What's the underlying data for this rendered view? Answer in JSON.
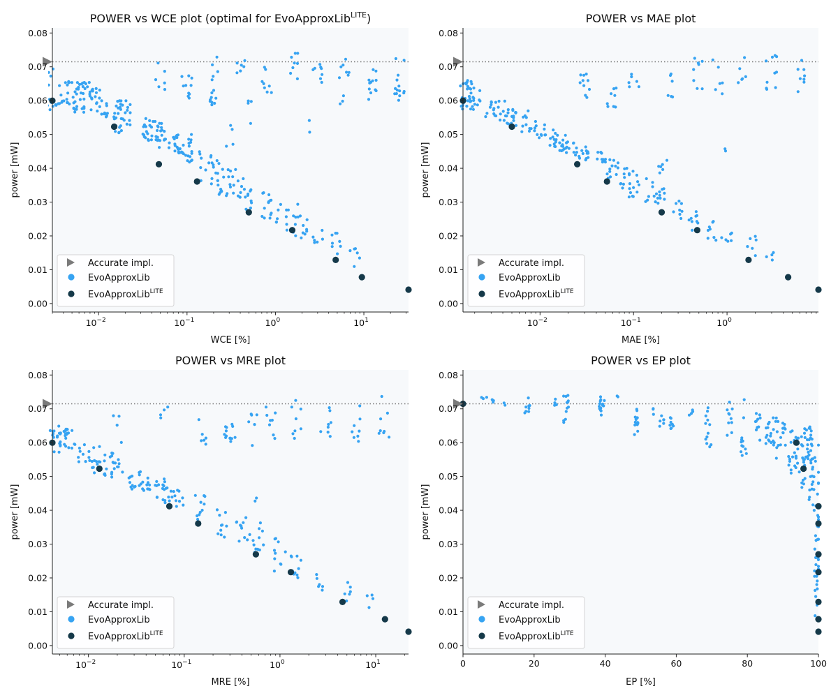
{
  "colors": {
    "evo": "#36a3f2",
    "lite": "#153949",
    "accurate": "#7a7a7a",
    "panel_bg": "#f7f9fb",
    "refline": "#777777"
  },
  "legend": {
    "accurate": "Accurate impl.",
    "evo": "EvoApproxLib",
    "lite": "EvoApproxLib",
    "lite_sup": "LITE"
  },
  "ylabel": "power [mW]",
  "chart_data": [
    {
      "type": "scatter",
      "title": "POWER vs WCE plot (optimal for EvoApproxLib",
      "title_sup": "LITE",
      "title_end": ")",
      "xlabel": "WCE [%]",
      "ylabel": "power [mW]",
      "xscale": "log",
      "xlim": [
        0.003,
        32
      ],
      "ylim": [
        -0.0025,
        0.0815
      ],
      "xticks": [
        "10",
        "10",
        "10",
        "10"
      ],
      "xtick_exps": [
        "−2",
        "−1",
        "0",
        "1"
      ],
      "yticks": [
        "0.00",
        "0.01",
        "0.02",
        "0.03",
        "0.04",
        "0.05",
        "0.06",
        "0.07",
        "0.08"
      ],
      "accurate_power": 0.0715,
      "lite_points": [
        [
          0.003,
          0.06
        ],
        [
          0.015,
          0.0523
        ],
        [
          0.048,
          0.0412
        ],
        [
          0.13,
          0.0361
        ],
        [
          0.5,
          0.027
        ],
        [
          1.55,
          0.0217
        ],
        [
          4.8,
          0.0129
        ],
        [
          9.5,
          0.0078
        ],
        [
          32,
          0.0041
        ]
      ],
      "evo_clusters": [
        [
          0.003,
          0.056,
          0.073,
          12
        ],
        [
          0.004,
          0.059,
          0.066,
          10
        ],
        [
          0.005,
          0.057,
          0.067,
          18
        ],
        [
          0.006,
          0.056,
          0.066,
          16
        ],
        [
          0.0075,
          0.057,
          0.066,
          16
        ],
        [
          0.009,
          0.059,
          0.064,
          10
        ],
        [
          0.011,
          0.055,
          0.06,
          12
        ],
        [
          0.016,
          0.05,
          0.057,
          10
        ],
        [
          0.018,
          0.05,
          0.06,
          14
        ],
        [
          0.02,
          0.052,
          0.059,
          10
        ],
        [
          0.035,
          0.048,
          0.056,
          16
        ],
        [
          0.045,
          0.045,
          0.054,
          14
        ],
        [
          0.05,
          0.048,
          0.055,
          10
        ],
        [
          0.07,
          0.045,
          0.05,
          12
        ],
        [
          0.08,
          0.044,
          0.047,
          10
        ],
        [
          0.1,
          0.041,
          0.05,
          16
        ],
        [
          0.1,
          0.06,
          0.068,
          10
        ],
        [
          0.2,
          0.035,
          0.044,
          14
        ],
        [
          0.25,
          0.032,
          0.04,
          8
        ],
        [
          0.3,
          0.031,
          0.041,
          10
        ],
        [
          0.4,
          0.03,
          0.04,
          10
        ],
        [
          0.5,
          0.027,
          0.034,
          8
        ],
        [
          0.8,
          0.025,
          0.033,
          10
        ],
        [
          1.0,
          0.024,
          0.031,
          8
        ],
        [
          1.5,
          0.02,
          0.028,
          10
        ],
        [
          2.0,
          0.019,
          0.031,
          10
        ],
        [
          3.0,
          0.017,
          0.023,
          6
        ],
        [
          5.0,
          0.014,
          0.021,
          8
        ],
        [
          8.0,
          0.01,
          0.017,
          6
        ],
        [
          0.2,
          0.058,
          0.073,
          14
        ],
        [
          0.05,
          0.062,
          0.072,
          6
        ],
        [
          0.4,
          0.068,
          0.073,
          6
        ],
        [
          0.8,
          0.06,
          0.073,
          8
        ],
        [
          1.6,
          0.066,
          0.074,
          8
        ],
        [
          3.0,
          0.063,
          0.073,
          8
        ],
        [
          6.0,
          0.055,
          0.073,
          10
        ],
        [
          12,
          0.06,
          0.073,
          12
        ],
        [
          25,
          0.06,
          0.074,
          14
        ],
        [
          0.15,
          0.035,
          0.046,
          6
        ],
        [
          0.3,
          0.045,
          0.053,
          4
        ],
        [
          0.5,
          0.053,
          0.063,
          4
        ],
        [
          2.5,
          0.048,
          0.055,
          2
        ]
      ]
    },
    {
      "type": "scatter",
      "title": "POWER vs MAE plot",
      "xlabel": "MAE [%]",
      "ylabel": "power [mW]",
      "xscale": "log",
      "xlim": [
        0.0015,
        9.5
      ],
      "ylim": [
        -0.0025,
        0.0815
      ],
      "xticks": [
        "10",
        "10",
        "10"
      ],
      "xtick_exps": [
        "−2",
        "−1",
        "0"
      ],
      "yticks": [
        "0.00",
        "0.01",
        "0.02",
        "0.03",
        "0.04",
        "0.05",
        "0.06",
        "0.07",
        "0.08"
      ],
      "accurate_power": 0.0715,
      "lite_points": [
        [
          0.0015,
          0.06
        ],
        [
          0.005,
          0.0523
        ],
        [
          0.025,
          0.0412
        ],
        [
          0.052,
          0.0361
        ],
        [
          0.2,
          0.027
        ],
        [
          0.48,
          0.0217
        ],
        [
          1.7,
          0.0129
        ],
        [
          4.5,
          0.0078
        ],
        [
          9.5,
          0.0041
        ]
      ],
      "evo_clusters": [
        [
          0.0016,
          0.057,
          0.066,
          22
        ],
        [
          0.002,
          0.057,
          0.065,
          16
        ],
        [
          0.003,
          0.055,
          0.06,
          12
        ],
        [
          0.004,
          0.054,
          0.06,
          10
        ],
        [
          0.005,
          0.052,
          0.058,
          14
        ],
        [
          0.007,
          0.05,
          0.057,
          10
        ],
        [
          0.01,
          0.049,
          0.054,
          12
        ],
        [
          0.014,
          0.046,
          0.052,
          12
        ],
        [
          0.018,
          0.045,
          0.05,
          12
        ],
        [
          0.022,
          0.043,
          0.048,
          10
        ],
        [
          0.03,
          0.042,
          0.047,
          12
        ],
        [
          0.045,
          0.04,
          0.045,
          10
        ],
        [
          0.06,
          0.037,
          0.043,
          12
        ],
        [
          0.08,
          0.034,
          0.04,
          10
        ],
        [
          0.1,
          0.031,
          0.04,
          12
        ],
        [
          0.15,
          0.03,
          0.037,
          8
        ],
        [
          0.2,
          0.028,
          0.034,
          10
        ],
        [
          0.3,
          0.025,
          0.032,
          8
        ],
        [
          0.45,
          0.02,
          0.028,
          10
        ],
        [
          0.7,
          0.018,
          0.025,
          8
        ],
        [
          1.0,
          0.016,
          0.022,
          6
        ],
        [
          1.8,
          0.013,
          0.02,
          6
        ],
        [
          3.0,
          0.011,
          0.016,
          4
        ],
        [
          0.03,
          0.06,
          0.068,
          10
        ],
        [
          0.06,
          0.058,
          0.066,
          8
        ],
        [
          0.1,
          0.062,
          0.072,
          6
        ],
        [
          0.25,
          0.06,
          0.073,
          6
        ],
        [
          0.5,
          0.063,
          0.074,
          8
        ],
        [
          0.8,
          0.058,
          0.073,
          6
        ],
        [
          1.5,
          0.063,
          0.073,
          6
        ],
        [
          3.0,
          0.06,
          0.074,
          10
        ],
        [
          6.0,
          0.055,
          0.073,
          8
        ],
        [
          0.2,
          0.038,
          0.046,
          6
        ],
        [
          1.0,
          0.044,
          0.05,
          2
        ]
      ]
    },
    {
      "type": "scatter",
      "title": "POWER vs MRE plot",
      "xlabel": "MRE [%]",
      "ylabel": "power [mW]",
      "xscale": "log",
      "xlim": [
        0.0042,
        22
      ],
      "ylim": [
        -0.0025,
        0.0815
      ],
      "xticks": [
        "10",
        "10",
        "10",
        "10"
      ],
      "xtick_exps": [
        "−2",
        "−1",
        "0",
        "1"
      ],
      "yticks": [
        "0.00",
        "0.01",
        "0.02",
        "0.03",
        "0.04",
        "0.05",
        "0.06",
        "0.07",
        "0.08"
      ],
      "accurate_power": 0.0715,
      "lite_points": [
        [
          0.0042,
          0.06
        ],
        [
          0.013,
          0.0523
        ],
        [
          0.07,
          0.0412
        ],
        [
          0.14,
          0.0361
        ],
        [
          0.56,
          0.027
        ],
        [
          1.3,
          0.0217
        ],
        [
          4.5,
          0.0129
        ],
        [
          12.5,
          0.0078
        ],
        [
          22,
          0.0041
        ]
      ],
      "evo_clusters": [
        [
          0.0045,
          0.057,
          0.066,
          14
        ],
        [
          0.0055,
          0.057,
          0.065,
          14
        ],
        [
          0.0065,
          0.058,
          0.064,
          10
        ],
        [
          0.009,
          0.054,
          0.06,
          10
        ],
        [
          0.012,
          0.051,
          0.059,
          12
        ],
        [
          0.016,
          0.05,
          0.057,
          12
        ],
        [
          0.02,
          0.049,
          0.055,
          10
        ],
        [
          0.03,
          0.046,
          0.053,
          12
        ],
        [
          0.04,
          0.045,
          0.052,
          12
        ],
        [
          0.055,
          0.043,
          0.05,
          12
        ],
        [
          0.07,
          0.042,
          0.047,
          10
        ],
        [
          0.09,
          0.041,
          0.046,
          8
        ],
        [
          0.15,
          0.036,
          0.045,
          10
        ],
        [
          0.25,
          0.032,
          0.041,
          10
        ],
        [
          0.4,
          0.03,
          0.038,
          10
        ],
        [
          0.6,
          0.027,
          0.034,
          8
        ],
        [
          1.0,
          0.022,
          0.032,
          10
        ],
        [
          1.5,
          0.02,
          0.027,
          10
        ],
        [
          2.5,
          0.016,
          0.022,
          6
        ],
        [
          5.0,
          0.013,
          0.02,
          6
        ],
        [
          9.0,
          0.011,
          0.017,
          4
        ],
        [
          0.3,
          0.06,
          0.066,
          14
        ],
        [
          0.15,
          0.057,
          0.068,
          6
        ],
        [
          0.5,
          0.059,
          0.07,
          6
        ],
        [
          0.8,
          0.06,
          0.071,
          8
        ],
        [
          1.5,
          0.06,
          0.073,
          8
        ],
        [
          3.0,
          0.06,
          0.073,
          8
        ],
        [
          6.0,
          0.06,
          0.073,
          8
        ],
        [
          12,
          0.06,
          0.074,
          8
        ],
        [
          0.06,
          0.064,
          0.071,
          4
        ],
        [
          0.02,
          0.06,
          0.07,
          4
        ],
        [
          0.55,
          0.03,
          0.047,
          6
        ]
      ]
    },
    {
      "type": "scatter",
      "title": "POWER vs EP plot",
      "xlabel": "EP [%]",
      "ylabel": "power [mW]",
      "xscale": "linear",
      "xlim": [
        0,
        100
      ],
      "ylim": [
        -0.0025,
        0.0815
      ],
      "xticks": [
        "0",
        "20",
        "40",
        "60",
        "80",
        "100"
      ],
      "xtick_vals": [
        0,
        20,
        40,
        60,
        80,
        100
      ],
      "yticks": [
        "0.00",
        "0.01",
        "0.02",
        "0.03",
        "0.04",
        "0.05",
        "0.06",
        "0.07",
        "0.08"
      ],
      "accurate_power": 0.0715,
      "lite_points": [
        [
          0,
          0.0715
        ],
        [
          93.8,
          0.06
        ],
        [
          95.8,
          0.0523
        ],
        [
          100,
          0.0412
        ],
        [
          100,
          0.0361
        ],
        [
          100,
          0.027
        ],
        [
          100,
          0.0217
        ],
        [
          100,
          0.0129
        ],
        [
          100,
          0.0078
        ],
        [
          100,
          0.0041
        ]
      ],
      "evo_clusters": [
        [
          6,
          0.072,
          0.074,
          3
        ],
        [
          9,
          0.071,
          0.073,
          3
        ],
        [
          12,
          0.071,
          0.072,
          2
        ],
        [
          18,
          0.068,
          0.074,
          8
        ],
        [
          26,
          0.07,
          0.073,
          4
        ],
        [
          29,
          0.066,
          0.074,
          12
        ],
        [
          39,
          0.068,
          0.074,
          14
        ],
        [
          44,
          0.072,
          0.074,
          2
        ],
        [
          49,
          0.062,
          0.071,
          14
        ],
        [
          54,
          0.068,
          0.072,
          3
        ],
        [
          56,
          0.064,
          0.07,
          6
        ],
        [
          59,
          0.063,
          0.07,
          8
        ],
        [
          64,
          0.067,
          0.071,
          4
        ],
        [
          69,
          0.058,
          0.071,
          12
        ],
        [
          75,
          0.059,
          0.072,
          10
        ],
        [
          79,
          0.056,
          0.073,
          12
        ],
        [
          83,
          0.06,
          0.069,
          10
        ],
        [
          86,
          0.058,
          0.068,
          12
        ],
        [
          88,
          0.055,
          0.068,
          12
        ],
        [
          90,
          0.056,
          0.066,
          10
        ],
        [
          92,
          0.05,
          0.064,
          10
        ],
        [
          94,
          0.05,
          0.062,
          14
        ],
        [
          96,
          0.045,
          0.065,
          18
        ],
        [
          98,
          0.04,
          0.065,
          24
        ],
        [
          99.5,
          0.003,
          0.06,
          40
        ],
        [
          97,
          0.055,
          0.062,
          10
        ]
      ]
    }
  ]
}
